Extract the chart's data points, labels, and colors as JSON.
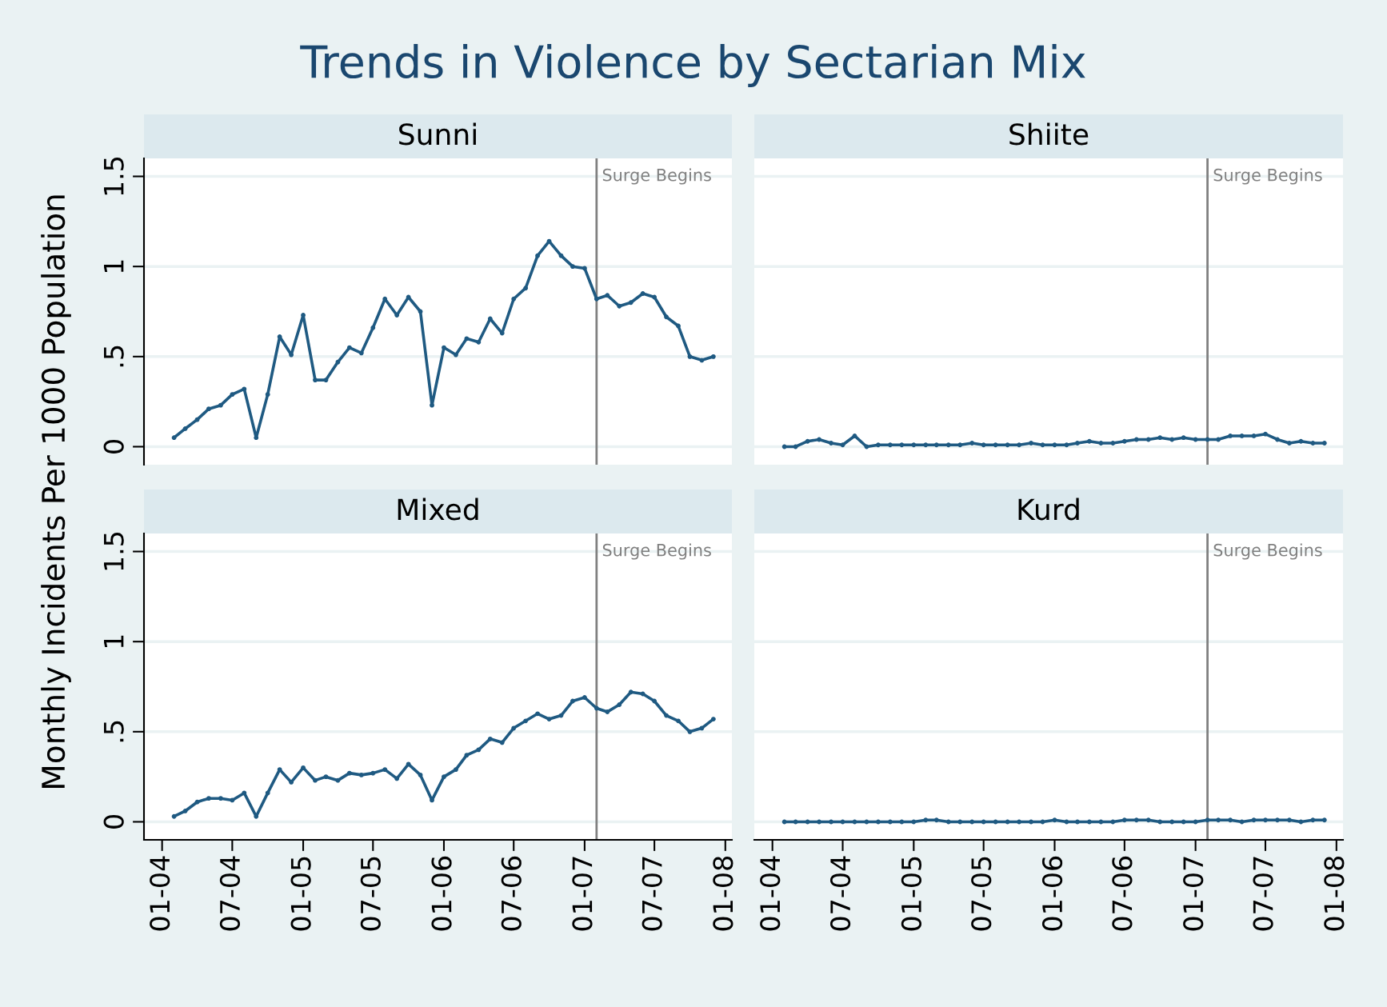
{
  "chart_data": [
    {
      "type": "line",
      "title": "Sunni",
      "ylabel": "Monthly Incidents Per 1000 Population",
      "annotations": [
        "Trends in Violence by Sectarian Mix"
      ],
      "tick_labels": "y",
      "grid": "y",
      "marker": "circle",
      "line_style": "solid",
      "legend": false,
      "x": [
        "2004-02",
        "2004-03",
        "2004-04",
        "2004-05",
        "2004-06",
        "2004-07",
        "2004-08",
        "2004-09",
        "2004-10",
        "2004-11",
        "2004-12",
        "2005-01",
        "2005-02",
        "2005-03",
        "2005-04",
        "2005-05",
        "2005-06",
        "2005-07",
        "2005-08",
        "2005-09",
        "2005-10",
        "2005-11",
        "2005-12",
        "2006-01",
        "2006-02",
        "2006-03",
        "2006-04",
        "2006-05",
        "2006-06",
        "2006-07",
        "2006-08",
        "2006-09",
        "2006-10",
        "2006-11",
        "2006-12",
        "2007-01",
        "2007-02",
        "2007-03",
        "2007-04",
        "2007-05",
        "2007-06",
        "2007-07",
        "2007-08",
        "2007-09",
        "2007-10",
        "2007-11",
        "2007-12"
      ],
      "series": [
        {
          "color": "#1f5a82",
          "values": [
            0.05,
            0.1,
            0.15,
            0.21,
            0.23,
            0.29,
            0.32,
            0.05,
            0.29,
            0.61,
            0.51,
            0.73,
            0.37,
            0.37,
            0.47,
            0.55,
            0.52,
            0.66,
            0.82,
            0.73,
            0.83,
            0.75,
            0.23,
            0.55,
            0.51,
            0.6,
            0.58,
            0.71,
            0.63,
            0.82,
            0.88,
            1.06,
            1.14,
            1.06,
            1.0,
            0.99,
            0.82,
            0.84,
            0.78,
            0.8,
            0.85,
            0.83,
            0.72,
            0.67,
            0.5,
            0.48,
            0.5
          ]
        }
      ],
      "xlim": [
        "2003-11-15",
        "2008-01-18"
      ],
      "ylim": [
        -0.1,
        1.6
      ],
      "yticks": [
        0,
        {
          "value": 0.5,
          "label": ".5"
        },
        1,
        1.5
      ],
      "ref_lines": [
        {
          "axis": "x",
          "value": "2007-02",
          "label": "Surge Begins",
          "color": "#808080"
        }
      ]
    },
    {
      "type": "line",
      "title": "Shiite",
      "tick_labels": false,
      "grid": "y",
      "marker": "circle",
      "line_style": "solid",
      "legend": false,
      "x": [
        "2004-02",
        "2004-03",
        "2004-04",
        "2004-05",
        "2004-06",
        "2004-07",
        "2004-08",
        "2004-09",
        "2004-10",
        "2004-11",
        "2004-12",
        "2005-01",
        "2005-02",
        "2005-03",
        "2005-04",
        "2005-05",
        "2005-06",
        "2005-07",
        "2005-08",
        "2005-09",
        "2005-10",
        "2005-11",
        "2005-12",
        "2006-01",
        "2006-02",
        "2006-03",
        "2006-04",
        "2006-05",
        "2006-06",
        "2006-07",
        "2006-08",
        "2006-09",
        "2006-10",
        "2006-11",
        "2006-12",
        "2007-01",
        "2007-02",
        "2007-03",
        "2007-04",
        "2007-05",
        "2007-06",
        "2007-07",
        "2007-08",
        "2007-09",
        "2007-10",
        "2007-11",
        "2007-12"
      ],
      "series": [
        {
          "color": "#1f5a82",
          "values": [
            0.0,
            0.0,
            0.03,
            0.04,
            0.02,
            0.01,
            0.06,
            0.0,
            0.01,
            0.01,
            0.01,
            0.01,
            0.01,
            0.01,
            0.01,
            0.01,
            0.02,
            0.01,
            0.01,
            0.01,
            0.01,
            0.02,
            0.01,
            0.01,
            0.01,
            0.02,
            0.03,
            0.02,
            0.02,
            0.03,
            0.04,
            0.04,
            0.05,
            0.04,
            0.05,
            0.04,
            0.04,
            0.04,
            0.06,
            0.06,
            0.06,
            0.07,
            0.04,
            0.02,
            0.03,
            0.02,
            0.02
          ]
        }
      ],
      "xlim": [
        "2003-11-15",
        "2008-01-18"
      ],
      "ylim": [
        -0.1,
        1.6
      ],
      "yticks": [
        {
          "value": 0,
          "label": null
        },
        {
          "value": 0.5,
          "label": null
        },
        {
          "value": 1,
          "label": null
        },
        {
          "value": 1.5,
          "label": null
        }
      ],
      "ref_lines": [
        {
          "axis": "x",
          "value": "2007-02",
          "label": "Surge Begins",
          "color": "#808080"
        }
      ]
    },
    {
      "type": "line",
      "title": "Mixed",
      "grid": "y",
      "marker": "circle",
      "line_style": "solid",
      "legend": false,
      "x": [
        "2004-02",
        "2004-03",
        "2004-04",
        "2004-05",
        "2004-06",
        "2004-07",
        "2004-08",
        "2004-09",
        "2004-10",
        "2004-11",
        "2004-12",
        "2005-01",
        "2005-02",
        "2005-03",
        "2005-04",
        "2005-05",
        "2005-06",
        "2005-07",
        "2005-08",
        "2005-09",
        "2005-10",
        "2005-11",
        "2005-12",
        "2006-01",
        "2006-02",
        "2006-03",
        "2006-04",
        "2006-05",
        "2006-06",
        "2006-07",
        "2006-08",
        "2006-09",
        "2006-10",
        "2006-11",
        "2006-12",
        "2007-01",
        "2007-02",
        "2007-03",
        "2007-04",
        "2007-05",
        "2007-06",
        "2007-07",
        "2007-08",
        "2007-09",
        "2007-10",
        "2007-11",
        "2007-12"
      ],
      "series": [
        {
          "color": "#1f5a82",
          "values": [
            0.03,
            0.06,
            0.11,
            0.13,
            0.13,
            0.12,
            0.16,
            0.03,
            0.16,
            0.29,
            0.22,
            0.3,
            0.23,
            0.25,
            0.23,
            0.27,
            0.26,
            0.27,
            0.29,
            0.24,
            0.32,
            0.26,
            0.12,
            0.25,
            0.29,
            0.37,
            0.4,
            0.46,
            0.44,
            0.52,
            0.56,
            0.6,
            0.57,
            0.59,
            0.67,
            0.69,
            0.63,
            0.61,
            0.65,
            0.72,
            0.71,
            0.67,
            0.59,
            0.56,
            0.5,
            0.52,
            0.57
          ]
        }
      ],
      "xlim": [
        "2003-11-15",
        "2008-01-18"
      ],
      "xticks": [
        {
          "value": "2004-01",
          "label": "01-04"
        },
        {
          "value": "2004-07",
          "label": "07-04"
        },
        {
          "value": "2005-01",
          "label": "01-05"
        },
        {
          "value": "2005-07",
          "label": "07-05"
        },
        {
          "value": "2006-01",
          "label": "01-06"
        },
        {
          "value": "2006-07",
          "label": "07-06"
        },
        {
          "value": "2007-01",
          "label": "01-07"
        },
        {
          "value": "2007-07",
          "label": "07-07"
        },
        {
          "value": "2008-01",
          "label": "01-08"
        }
      ],
      "ylim": [
        -0.1,
        1.6
      ],
      "yticks": [
        0,
        {
          "value": 0.5,
          "label": ".5"
        },
        1,
        1.5
      ],
      "ref_lines": [
        {
          "axis": "x",
          "value": "2007-02",
          "label": "Surge Begins",
          "color": "#808080"
        }
      ]
    },
    {
      "type": "line",
      "title": "Kurd",
      "tick_labels": "x",
      "grid": "y",
      "marker": "circle",
      "line_style": "solid",
      "legend": false,
      "x": [
        "2004-02",
        "2004-03",
        "2004-04",
        "2004-05",
        "2004-06",
        "2004-07",
        "2004-08",
        "2004-09",
        "2004-10",
        "2004-11",
        "2004-12",
        "2005-01",
        "2005-02",
        "2005-03",
        "2005-04",
        "2005-05",
        "2005-06",
        "2005-07",
        "2005-08",
        "2005-09",
        "2005-10",
        "2005-11",
        "2005-12",
        "2006-01",
        "2006-02",
        "2006-03",
        "2006-04",
        "2006-05",
        "2006-06",
        "2006-07",
        "2006-08",
        "2006-09",
        "2006-10",
        "2006-11",
        "2006-12",
        "2007-01",
        "2007-02",
        "2007-03",
        "2007-04",
        "2007-05",
        "2007-06",
        "2007-07",
        "2007-08",
        "2007-09",
        "2007-10",
        "2007-11",
        "2007-12"
      ],
      "series": [
        {
          "color": "#1f5a82",
          "values": [
            0,
            0,
            0,
            0,
            0,
            0,
            0,
            0,
            0,
            0,
            0,
            0,
            0.01,
            0.01,
            0,
            0,
            0,
            0,
            0,
            0,
            0,
            0,
            0,
            0.01,
            0,
            0,
            0,
            0,
            0,
            0.01,
            0.01,
            0.01,
            0,
            0,
            0,
            0,
            0.01,
            0.01,
            0.01,
            0,
            0.01,
            0.01,
            0.01,
            0.01,
            0,
            0.01,
            0.01
          ]
        }
      ],
      "xlim": [
        "2003-11-15",
        "2008-01-18"
      ],
      "xticks": [
        {
          "value": "2004-01",
          "label": "01-04"
        },
        {
          "value": "2004-07",
          "label": "07-04"
        },
        {
          "value": "2005-01",
          "label": "01-05"
        },
        {
          "value": "2005-07",
          "label": "07-05"
        },
        {
          "value": "2006-01",
          "label": "01-06"
        },
        {
          "value": "2006-07",
          "label": "07-06"
        },
        {
          "value": "2007-01",
          "label": "01-07"
        },
        {
          "value": "2007-07",
          "label": "07-07"
        },
        {
          "value": "2008-01",
          "label": "01-08"
        }
      ],
      "ylim": [
        -0.1,
        1.6
      ],
      "yticks": [
        {
          "value": 0,
          "label": null
        },
        {
          "value": 0.5,
          "label": null
        },
        {
          "value": 1,
          "label": null
        },
        {
          "value": 1.5,
          "label": null
        }
      ],
      "ref_lines": [
        {
          "axis": "x",
          "value": "2007-02",
          "label": "Surge Begins",
          "color": "#808080"
        }
      ]
    }
  ]
}
